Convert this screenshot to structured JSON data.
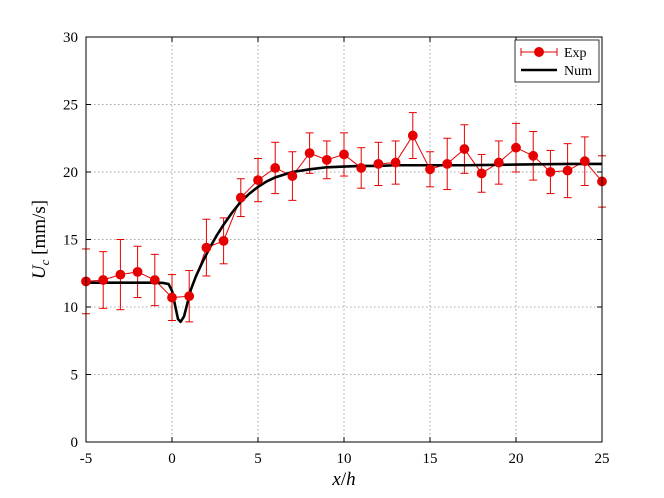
{
  "colors": {
    "exp": "#e60000",
    "num": "#000000"
  },
  "chart_data": {
    "type": "line",
    "xlabel": "x/h",
    "ylabel": "U_c [mm/s]",
    "xlabel_parts": {
      "x": "x",
      "slash": "/",
      "h": "h"
    },
    "ylabel_parts": {
      "main": "U",
      "sub": "c",
      "unit": " [mm/s]"
    },
    "xlim": [
      -5,
      25
    ],
    "ylim": [
      0,
      30
    ],
    "xticks": [
      "-5",
      "0",
      "5",
      "10",
      "15",
      "20",
      "25"
    ],
    "yticks": [
      "0",
      "5",
      "10",
      "15",
      "20",
      "25",
      "30"
    ],
    "grid": true,
    "legend_position": "top-right",
    "series": [
      {
        "name": "Exp",
        "style": "markers-errorbars",
        "x": [
          -5,
          -4,
          -3,
          -2,
          -1,
          0,
          1,
          2,
          3,
          4,
          5,
          6,
          7,
          8,
          9,
          10,
          11,
          12,
          13,
          14,
          15,
          16,
          17,
          18,
          19,
          20,
          21,
          22,
          23,
          24,
          25
        ],
        "y": [
          11.9,
          12.0,
          12.4,
          12.6,
          12.0,
          10.7,
          10.8,
          14.4,
          14.9,
          18.1,
          19.4,
          20.3,
          19.7,
          21.4,
          20.9,
          21.3,
          20.3,
          20.6,
          20.7,
          22.7,
          20.2,
          20.6,
          21.7,
          19.9,
          20.7,
          21.8,
          21.2,
          20.0,
          20.1,
          20.8,
          19.3
        ],
        "err": [
          2.4,
          2.1,
          2.6,
          1.9,
          1.9,
          1.7,
          1.9,
          2.1,
          1.7,
          1.4,
          1.6,
          1.9,
          1.8,
          1.5,
          1.4,
          1.6,
          1.5,
          1.6,
          1.6,
          1.7,
          1.3,
          1.9,
          1.8,
          1.4,
          1.6,
          1.8,
          1.8,
          1.6,
          2.0,
          1.8,
          1.9
        ]
      },
      {
        "name": "Num",
        "style": "line",
        "x": [
          -5,
          -4,
          -3,
          -2,
          -1,
          -0.5,
          -0.2,
          0,
          0.2,
          0.35,
          0.5,
          0.7,
          0.9,
          1.1,
          1.4,
          1.8,
          2.2,
          2.6,
          3,
          3.5,
          4,
          4.5,
          5,
          5.5,
          6,
          7,
          8,
          9,
          10,
          11,
          12,
          13,
          15,
          17,
          20,
          23,
          25
        ],
        "y": [
          11.8,
          11.8,
          11.8,
          11.8,
          11.8,
          11.78,
          11.7,
          11.2,
          10.0,
          9.1,
          8.9,
          9.3,
          10.3,
          11.3,
          12.3,
          13.4,
          14.4,
          15.3,
          16.1,
          17.0,
          17.8,
          18.4,
          18.9,
          19.3,
          19.6,
          20.0,
          20.2,
          20.35,
          20.4,
          20.45,
          20.45,
          20.5,
          20.5,
          20.5,
          20.55,
          20.6,
          20.6
        ]
      }
    ]
  }
}
